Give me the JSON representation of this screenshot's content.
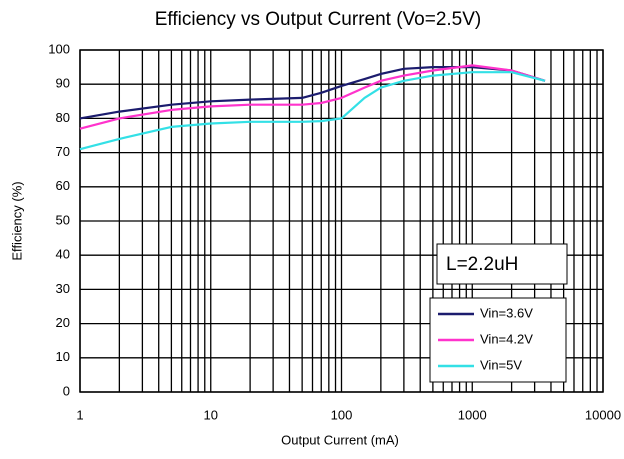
{
  "chart_data": {
    "type": "line",
    "title": "Efficiency vs Output Current (Vo=2.5V)",
    "x_label": "Output Current (mA)",
    "y_label": "Efficiency (%)",
    "annotation": "L=2.2uH",
    "x": [
      1,
      2,
      5,
      10,
      20,
      50,
      70,
      100,
      150,
      200,
      300,
      500,
      1000,
      2000,
      3600
    ],
    "series": [
      {
        "name": "Vin=3.6V",
        "color": "#1c1c6e",
        "values": [
          80,
          82,
          84,
          85,
          85.5,
          86,
          87.5,
          89.5,
          91.5,
          93,
          94.5,
          95,
          95,
          94,
          91
        ]
      },
      {
        "name": "Vin=4.2V",
        "color": "#ff33cc",
        "values": [
          77,
          80,
          82.5,
          83.5,
          84,
          84,
          84.5,
          86,
          89,
          91,
          92.5,
          94,
          95.5,
          94,
          91
        ]
      },
      {
        "name": "Vin=5V",
        "color": "#33e0e6",
        "values": [
          71,
          74,
          77.5,
          78.5,
          79,
          79,
          79.2,
          80,
          86,
          89,
          91,
          92.5,
          93.5,
          93.5,
          91
        ]
      }
    ],
    "xlim": [
      1,
      10000
    ],
    "xticks": [
      1,
      10,
      100,
      1000,
      10000
    ],
    "x_log": true,
    "ylim": [
      0,
      100
    ],
    "yticks": [
      0,
      10,
      20,
      30,
      40,
      50,
      60,
      70,
      80,
      90,
      100
    ],
    "grid": true,
    "legend": "lower right"
  }
}
